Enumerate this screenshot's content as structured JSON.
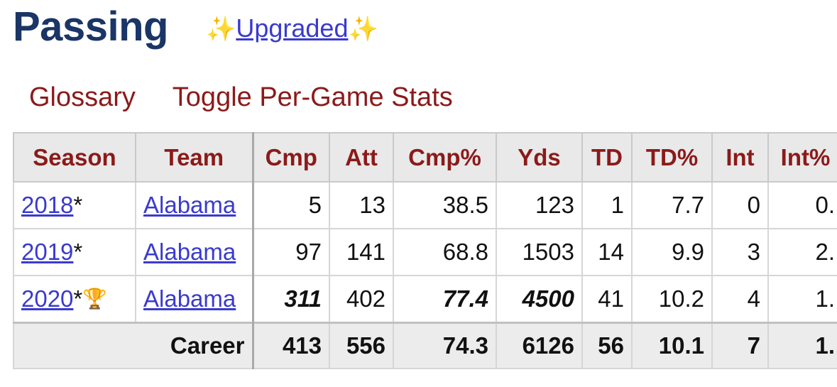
{
  "header": {
    "title": "Passing",
    "sparkle": "✨",
    "upgraded_label": "Upgraded"
  },
  "links": {
    "glossary": "Glossary",
    "toggle": "Toggle Per-Game Stats"
  },
  "table": {
    "columns": [
      "Season",
      "Team",
      "Cmp",
      "Att",
      "Cmp%",
      "Yds",
      "TD",
      "TD%",
      "Int",
      "Int%"
    ],
    "rows": [
      {
        "season": "2018",
        "marker": "*",
        "award": "",
        "team": "Alabama",
        "cmp": "5",
        "att": "13",
        "cmp_pct": "38.5",
        "yds": "123",
        "td": "1",
        "td_pct": "7.7",
        "int": "0",
        "int_pct": "0."
      },
      {
        "season": "2019",
        "marker": "*",
        "award": "",
        "team": "Alabama",
        "cmp": "97",
        "att": "141",
        "cmp_pct": "68.8",
        "yds": "1503",
        "td": "14",
        "td_pct": "9.9",
        "int": "3",
        "int_pct": "2."
      },
      {
        "season": "2020",
        "marker": "*",
        "award": "🏆",
        "team": "Alabama",
        "cmp": "311",
        "att": "402",
        "cmp_pct": "77.4",
        "yds": "4500",
        "td": "41",
        "td_pct": "10.2",
        "int": "4",
        "int_pct": "1."
      }
    ],
    "footer": {
      "label": "Career",
      "cmp": "413",
      "att": "556",
      "cmp_pct": "74.3",
      "yds": "6126",
      "td": "56",
      "td_pct": "10.1",
      "int": "7",
      "int_pct": "1."
    }
  },
  "colors": {
    "title": "#1a3566",
    "link": "#3a3acf",
    "header_text": "#8b1a1a",
    "header_bg": "#e9e9e9"
  }
}
